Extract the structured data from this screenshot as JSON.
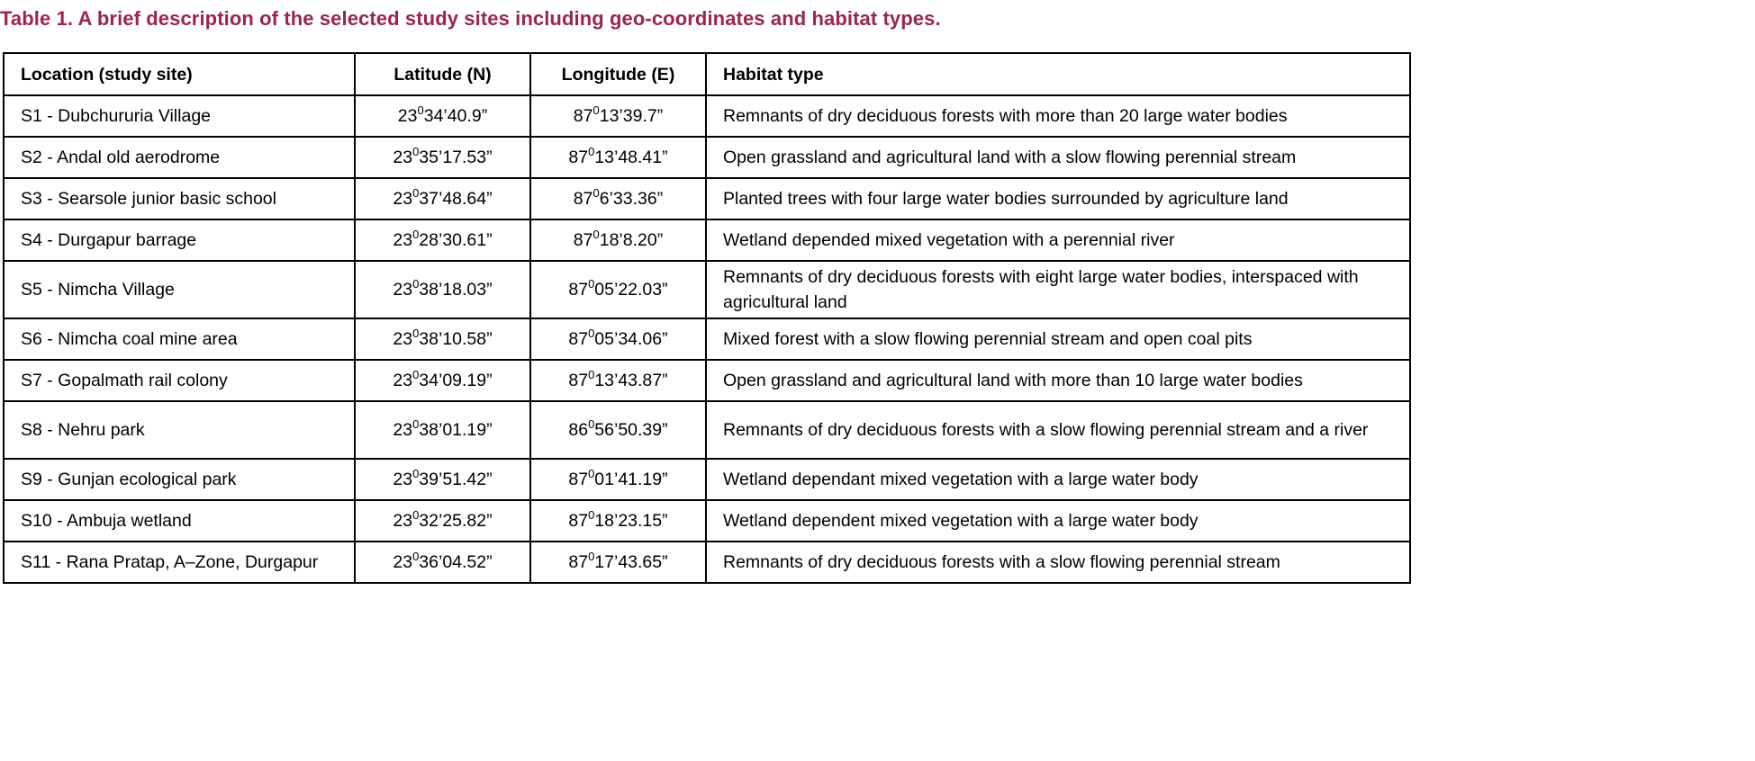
{
  "title": "Table 1. A brief description of the selected study sites including geo-coordinates and habitat types.",
  "headers": [
    "Location (study site)",
    "Latitude (N)",
    "Longitude (E)",
    "Habitat type"
  ],
  "rows": [
    {
      "location": "S1 - Dubchururia Village",
      "lat": {
        "deg": "23",
        "sup": "0",
        "rest": "34’40.9”"
      },
      "lon": {
        "deg": "87",
        "sup": "0",
        "rest": "13’39.7”"
      },
      "habitat": "Remnants of dry deciduous forests with more than 20 large water bodies"
    },
    {
      "location": "S2 - Andal old aerodrome",
      "lat": {
        "deg": "23",
        "sup": "0",
        "rest": "35’17.53”"
      },
      "lon": {
        "deg": "87",
        "sup": "0",
        "rest": "13’48.41”"
      },
      "habitat": "Open grassland and agricultural land with a slow flowing perennial stream"
    },
    {
      "location": "S3 - Searsole junior basic school",
      "lat": {
        "deg": "23",
        "sup": "0",
        "rest": "37’48.64”"
      },
      "lon": {
        "deg": "87",
        "sup": "0",
        "rest": "6’33.36”"
      },
      "habitat": "Planted trees with four large water bodies surrounded by agriculture land"
    },
    {
      "location": "S4 - Durgapur barrage",
      "lat": {
        "deg": "23",
        "sup": "0",
        "rest": "28’30.61”"
      },
      "lon": {
        "deg": "87",
        "sup": "0",
        "rest": "18’8.20”"
      },
      "habitat": "Wetland depended mixed vegetation with a perennial river"
    },
    {
      "location": "S5 - Nimcha Village",
      "lat": {
        "deg": "23",
        "sup": "0",
        "rest": "38’18.03”"
      },
      "lon": {
        "deg": "87",
        "sup": "0",
        "rest": "05’22.03”"
      },
      "habitat": "Remnants of dry deciduous forests with eight large water bodies, interspaced with agricultural land"
    },
    {
      "location": "S6 - Nimcha coal mine area",
      "lat": {
        "deg": "23",
        "sup": "0",
        "rest": "38’10.58”"
      },
      "lon": {
        "deg": "87",
        "sup": "0",
        "rest": "05’34.06”"
      },
      "habitat": "Mixed forest with a slow flowing perennial stream and open coal pits"
    },
    {
      "location": "S7 - Gopalmath rail colony",
      "lat": {
        "deg": "23",
        "sup": "0",
        "rest": "34’09.19”"
      },
      "lon": {
        "deg": "87",
        "sup": "0",
        "rest": "13’43.87”"
      },
      "habitat": "Open grassland and agricultural land with more than 10 large water bodies"
    },
    {
      "location": "S8 - Nehru park",
      "lat": {
        "deg": "23",
        "sup": "0",
        "rest": "38’01.19”"
      },
      "lon": {
        "deg": "86",
        "sup": "0",
        "rest": "56’50.39”"
      },
      "habitat": "Remnants of dry deciduous forests with a slow flowing perennial stream and a river"
    },
    {
      "location": "S9 - Gunjan ecological park",
      "lat": {
        "deg": "23",
        "sup": "0",
        "rest": "39’51.42”"
      },
      "lon": {
        "deg": "87",
        "sup": "0",
        "rest": "01’41.19”"
      },
      "habitat": "Wetland dependant mixed vegetation with a large water body"
    },
    {
      "location": "S10 - Ambuja wetland",
      "lat": {
        "deg": "23",
        "sup": "0",
        "rest": "32’25.82”"
      },
      "lon": {
        "deg": "87",
        "sup": "0",
        "rest": "18’23.15”"
      },
      "habitat": "Wetland dependent mixed vegetation with a large water body"
    },
    {
      "location": "S11 - Rana Pratap, A–Zone, Durgapur",
      "lat": {
        "deg": "23",
        "sup": "0",
        "rest": "36’04.52”"
      },
      "lon": {
        "deg": "87",
        "sup": "0",
        "rest": "17’43.65”"
      },
      "habitat": "Remnants of dry deciduous forests with a slow flowing perennial stream"
    }
  ]
}
